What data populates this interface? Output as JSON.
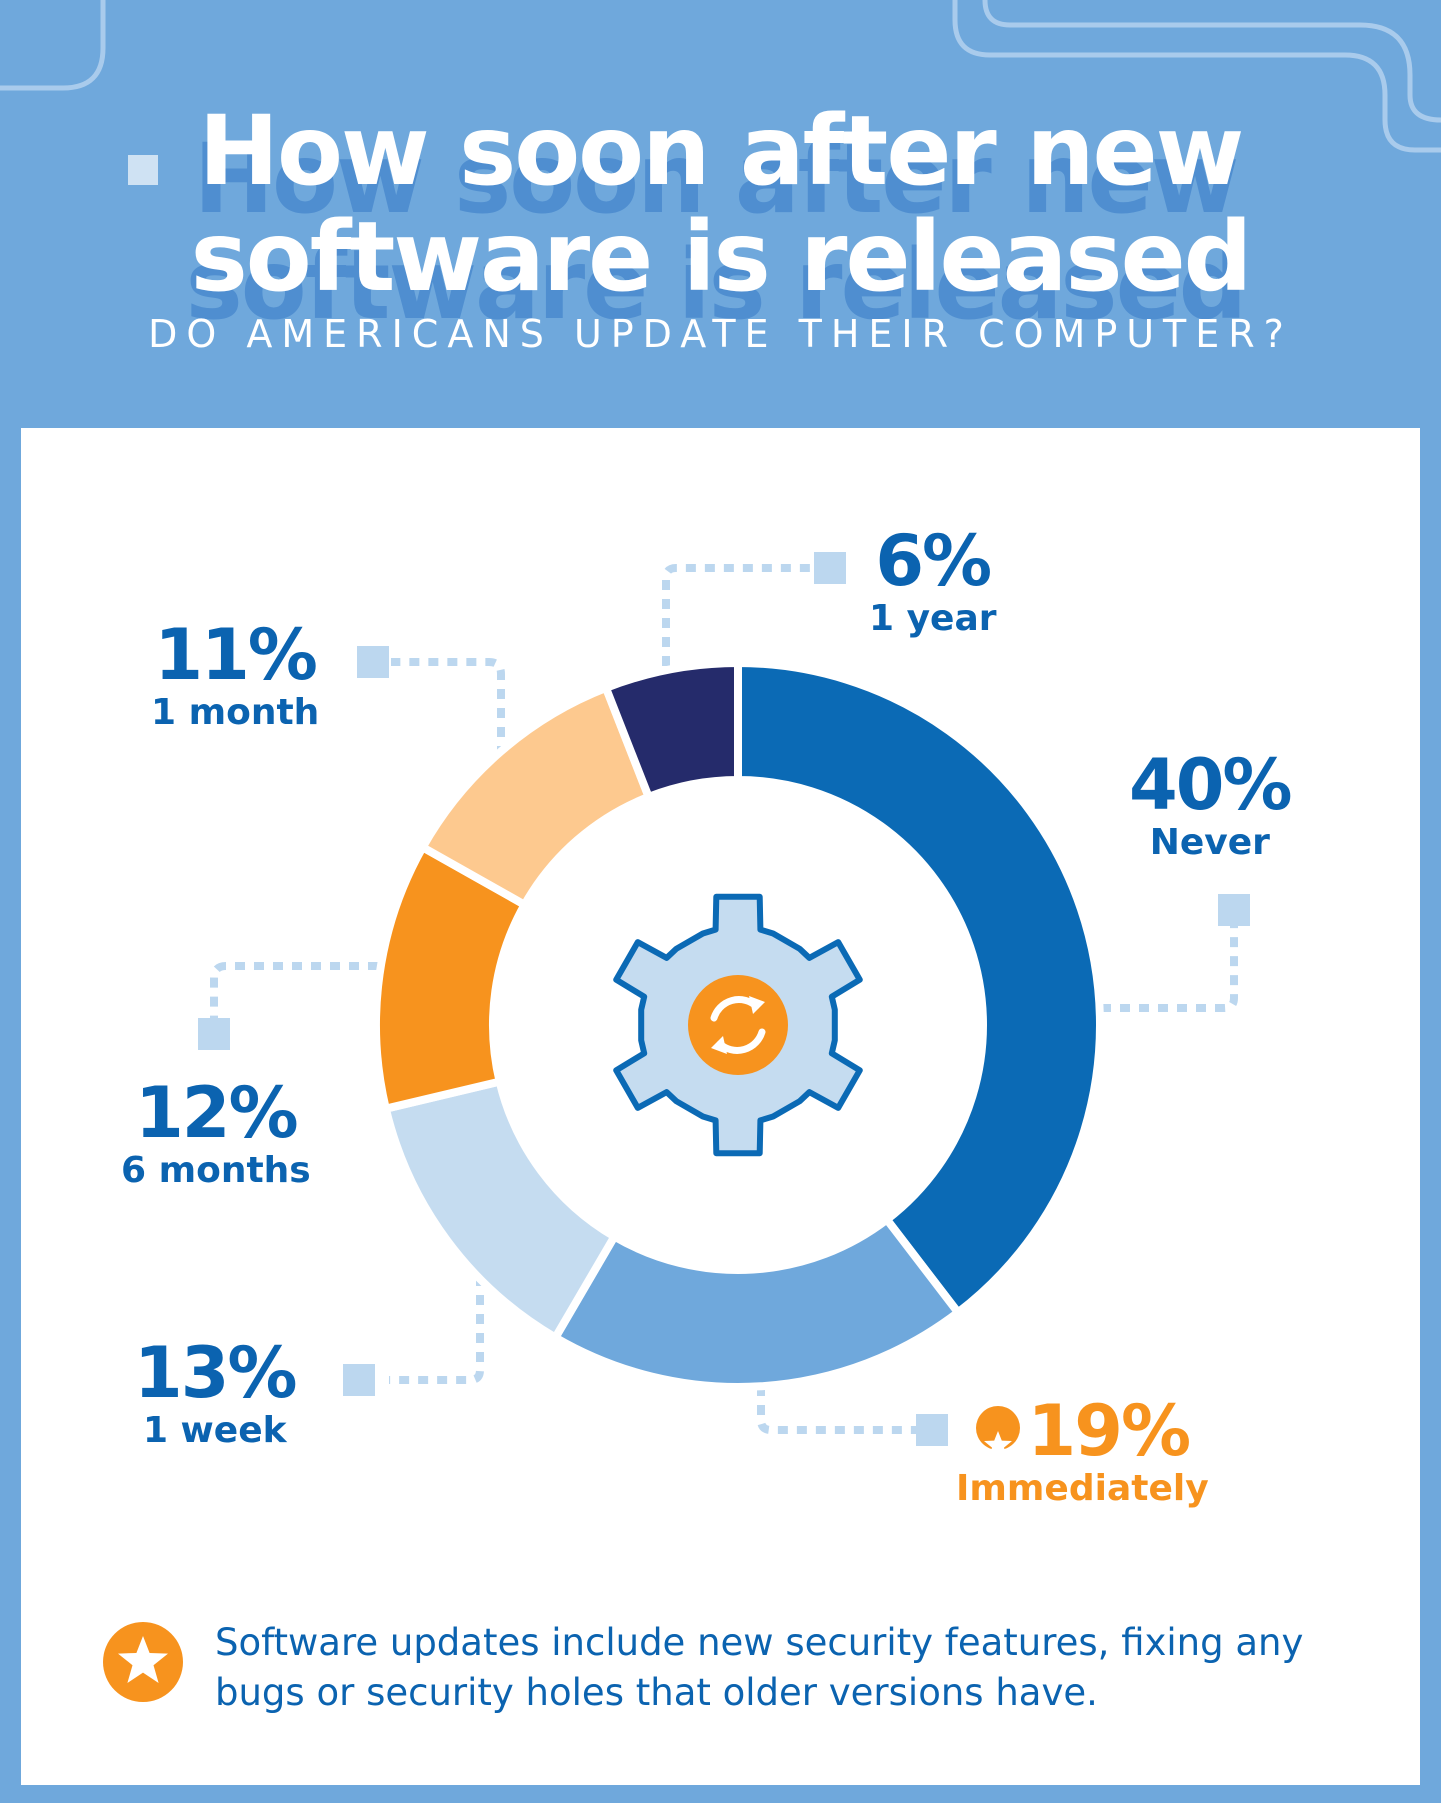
{
  "header": {
    "title_line1": "How soon after new",
    "title_line2": "software is released",
    "subtitle": "DO AMERICANS UPDATE THEIR COMPUTER?"
  },
  "chart_data": {
    "type": "pie",
    "title": "How soon after new software is released do Americans update their computer?",
    "unit": "%",
    "slices": [
      {
        "label": "Never",
        "value": 40,
        "display": "40%",
        "color": "#0b6ab5"
      },
      {
        "label": "Immediately",
        "value": 19,
        "display": "19%",
        "color": "#6fa8dc"
      },
      {
        "label": "1 week",
        "value": 13,
        "display": "13%",
        "color": "#c5dcf0"
      },
      {
        "label": "6 months",
        "value": 12,
        "display": "12%",
        "color": "#f7931e"
      },
      {
        "label": "1 month",
        "value": 11,
        "display": "11%",
        "color": "#fdc98f"
      },
      {
        "label": "1 year",
        "value": 6,
        "display": "6%",
        "color": "#252b6b"
      }
    ],
    "highlight": "Immediately"
  },
  "icons": {
    "center": "gear-refresh-icon",
    "highlight": "star-icon"
  },
  "colors": {
    "background": "#6fa8dc",
    "panel": "#ffffff",
    "text_blue": "#0b63b0",
    "accent_orange": "#f7931e",
    "connector": "#bcd7ef"
  },
  "footnote": {
    "text": "Software updates include new security features, fixing any bugs or security holes that older versions have."
  }
}
